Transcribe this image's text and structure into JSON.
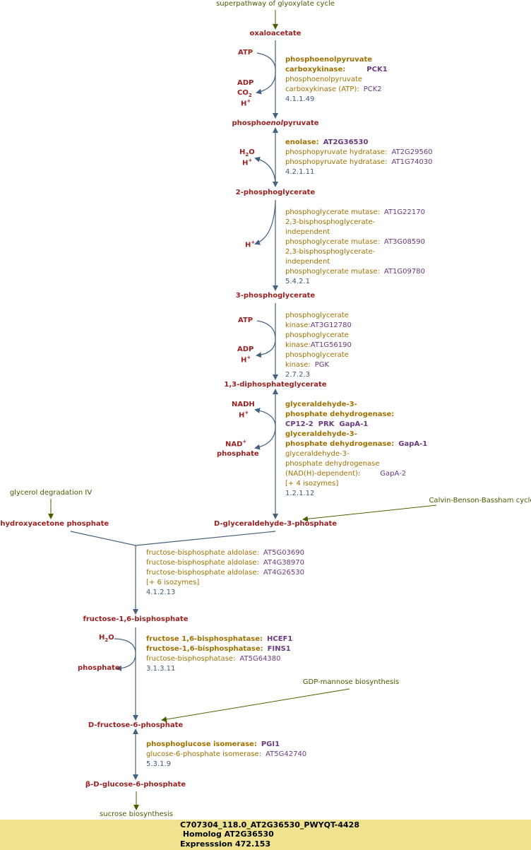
{
  "colors": {
    "compound": "#9c2020",
    "enzyme": "#a07000",
    "gene": "#6a3a80",
    "ec": "#3a5a80",
    "arrow": "#44617f",
    "link": "#4a5a00",
    "footer_bg": "#efe38f"
  },
  "links": {
    "top": "superpathway of glyoxylate cycle",
    "glycerol": "glycerol degradation IV",
    "calvin": "Calvin-Benson-Bassham cycle",
    "gdp": "GDP-mannose biosynthesis",
    "sucrose": "sucrose biosynthesis"
  },
  "compounds": {
    "oaa": "oxaloacetate",
    "pep_a": "phospho",
    "pep_b": "enol",
    "pep_c": "pyruvate",
    "pg2": "2-phosphoglycerate",
    "pg3": "3-phosphoglycerate",
    "dpg": "1,3-diphosphateglycerate",
    "g3p": "D-glyceraldehyde-3-phosphate",
    "dhap": "dihydroxyacetone phosphate",
    "fbp": "fructose-1,6-bisphosphate",
    "f6p": "D-fructose-6-phosphate",
    "g6p": "β-D-glucose-6-phosphate"
  },
  "side": {
    "atp": "ATP",
    "adp": "ADP",
    "co2": "CO",
    "co2_sub": "2",
    "h": "H",
    "plus": "+",
    "h2o_a": "H",
    "h2o_sub": "2",
    "h2o_b": "O",
    "nadh": "NADH",
    "nad": "NAD",
    "phosphate": "phosphate"
  },
  "reactions": {
    "r1": {
      "e1": "phosphoenolpyruvate\ncarboxykinase:",
      "g1": "PCK1",
      "e2": "phosphoenolpyruvate\ncarboxykinase (ATP):",
      "g2": "PCK2",
      "ec": "4.1.1.49"
    },
    "r2": {
      "e1": "enolase:",
      "g1": "AT2G36530",
      "e2": "phosphopyruvate hydratase:",
      "g2": "AT2G29560",
      "e3": "phosphopyruvate hydratase:",
      "g3": "AT1G74030",
      "ec": "4.2.1.11"
    },
    "r3": {
      "e1": "phosphoglycerate mutase:",
      "g1": "AT1G22170",
      "e2": "2,3-bisphosphoglycerate-\nindependent\nphosphoglycerate mutase:",
      "g2": "AT3G08590",
      "e3": "2,3-bisphosphoglycerate-\nindependent\nphosphoglycerate mutase:",
      "g3": "AT1G09780",
      "ec": "5.4.2.1"
    },
    "r4": {
      "e1": "phosphoglycerate kinase:",
      "g1": "AT3G12780",
      "e2": "phosphoglycerate kinase:",
      "g2": "AT1G56190",
      "e3": "phosphoglycerate kinase:",
      "g3": "PGK",
      "ec": "2.7.2.3"
    },
    "r5": {
      "e1": "glyceraldehyde-3-\nphosphate dehydrogenase:",
      "g1": "CP12-2  PRK  GapA-1",
      "e2": "glyceraldehyde-3-\nphosphate dehydrogenase:",
      "g2": "GapA-1",
      "e3": "glyceraldehyde-3-\nphosphate dehydrogenase\n(NAD(H)-dependent):",
      "g3": "GapA-2",
      "more": "[+ 4 isozymes]",
      "ec": "1.2.1.12"
    },
    "r6": {
      "e1": "fructose-bisphosphate aldolase:",
      "g1": "AT5G03690",
      "e2": "fructose-bisphosphate aldolase:",
      "g2": "AT4G38970",
      "e3": "fructose-bisphosphate aldolase:",
      "g3": "AT4G26530",
      "more": "[+ 6 isozymes]",
      "ec": "4.1.2.13"
    },
    "r7": {
      "e1": "fructose 1,6-bisphosphatase:",
      "g1": "HCEF1",
      "e2": "fructose-1,6-bisphosphatase:",
      "g2": "FINS1",
      "e3": "fructose-bisphosphatase:",
      "g3": "AT5G64380",
      "ec": "3.1.3.11"
    },
    "r8": {
      "e1": "phosphoglucose isomerase:",
      "g1": "PGI1",
      "e2": "glucose-6-phosphate isomerase:",
      "g2": "AT5G42740",
      "ec": "5.3.1.9"
    }
  },
  "footer": {
    "line1": "C707304_118.0_AT2G36530_PWYQT-4428",
    "line2": " Homolog AT2G36530",
    "line3": "Expresssion 472.153"
  }
}
